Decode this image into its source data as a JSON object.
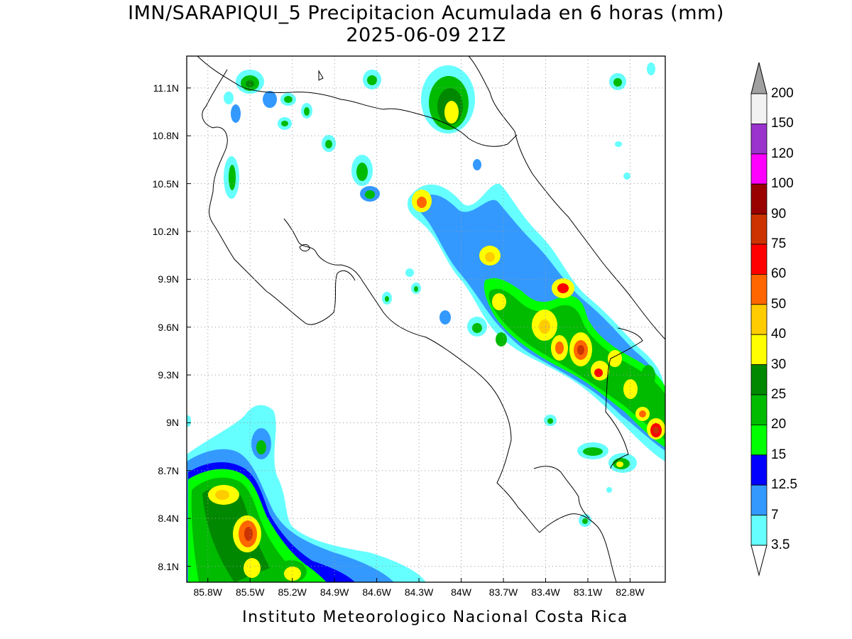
{
  "title": {
    "line1": "IMN/SARAPIQUI_5 Precipitacion Acumulada en 6 horas (mm)",
    "line2": "2025-06-09 21Z"
  },
  "footer": "Instituto Meteorologico Nacional Costa Rica",
  "axes": {
    "lat_labels": [
      "11.1N",
      "10.8N",
      "10.5N",
      "10.2N",
      "9.9N",
      "9.6N",
      "9.3N",
      "9N",
      "8.7N",
      "8.4N",
      "8.1N"
    ],
    "lat_values": [
      11.1,
      10.8,
      10.5,
      10.2,
      9.9,
      9.6,
      9.3,
      9.0,
      8.7,
      8.4,
      8.1
    ],
    "lon_labels": [
      "85.8W",
      "85.5W",
      "85.2W",
      "84.9W",
      "84.6W",
      "84.3W",
      "84W",
      "83.7W",
      "83.4W",
      "83.1W",
      "82.8W"
    ],
    "lon_values": [
      -85.8,
      -85.5,
      -85.2,
      -84.9,
      -84.6,
      -84.3,
      -84.0,
      -83.7,
      -83.4,
      -83.1,
      -82.8
    ],
    "lat_range": [
      8.0,
      11.3
    ],
    "lon_range": [
      -85.95,
      -82.55
    ],
    "grid": "dotted"
  },
  "colorbar": {
    "labels": [
      "200",
      "150",
      "120",
      "100",
      "90",
      "75",
      "60",
      "50",
      "40",
      "30",
      "25",
      "20",
      "15",
      "12.5",
      "7",
      "3.5"
    ],
    "colors": [
      "#f2f2f2",
      "#9933cc",
      "#ff00ff",
      "#990000",
      "#cc3300",
      "#ff0000",
      "#ff6600",
      "#ffcc00",
      "#ffff00",
      "#008800",
      "#00bb00",
      "#00ff00",
      "#0000ff",
      "#3399ff",
      "#66ffff"
    ],
    "over_color": "#a0a0a0",
    "under_color": "#ffffff"
  }
}
